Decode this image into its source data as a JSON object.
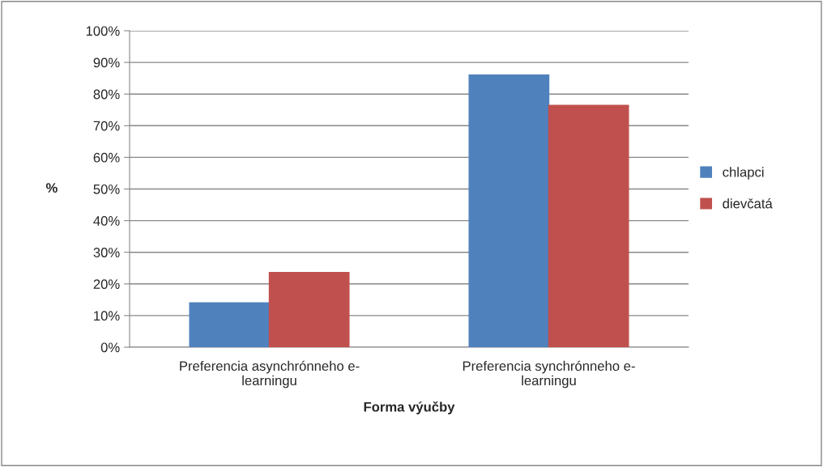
{
  "chart_data": {
    "type": "bar",
    "categories": [
      "Preferencia asynchrónneho e-\nlearningu",
      "Preferencia synchrónneho e-\nlearningu"
    ],
    "series": [
      {
        "name": "chlapci",
        "color": "#4f81bd",
        "values": [
          14,
          86
        ]
      },
      {
        "name": "dievčatá",
        "color": "#c0504d",
        "values": [
          23.6,
          76.4
        ]
      }
    ],
    "xlabel": "Forma výučby",
    "ylabel": "%",
    "ylim": [
      0,
      100
    ],
    "yticks": [
      {
        "value": 0,
        "label": "0%"
      },
      {
        "value": 10,
        "label": "10%"
      },
      {
        "value": 20,
        "label": "20%"
      },
      {
        "value": 30,
        "label": "30%"
      },
      {
        "value": 40,
        "label": "40%"
      },
      {
        "value": 50,
        "label": "50%"
      },
      {
        "value": 60,
        "label": "60%"
      },
      {
        "value": 70,
        "label": "70%"
      },
      {
        "value": 80,
        "label": "80%"
      },
      {
        "value": 90,
        "label": "90%"
      },
      {
        "value": 100,
        "label": "100%"
      }
    ],
    "grid": "y",
    "legend": "right"
  }
}
